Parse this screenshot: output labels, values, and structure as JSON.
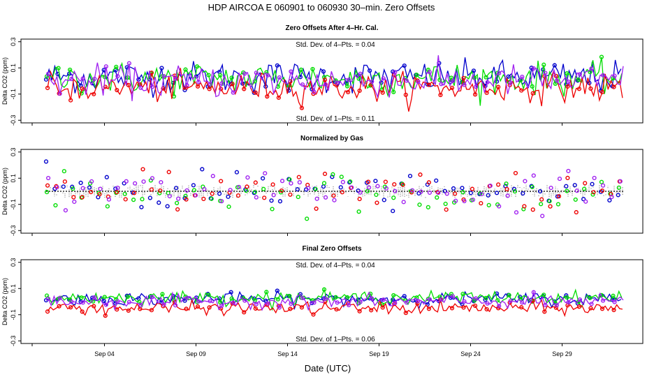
{
  "figure": {
    "title": "HDP    AIRCOA E    060901 to 060930    30–min. Zero Offsets",
    "xlabel": "Date (UTC)",
    "x_ticks": [
      "Sep 04",
      "Sep 09",
      "Sep 14",
      "Sep 19",
      "Sep 24",
      "Sep 29"
    ]
  },
  "chart_data": [
    {
      "type": "scatter",
      "title": "Zero Offsets After 4–Hr. Cal.",
      "ylabel": "Delta CO2 (ppm)",
      "ylim": [
        -0.32,
        0.32
      ],
      "y_ticks": [
        "0.3",
        "0.1",
        "-0.1",
        "-0.3"
      ],
      "annotations": [
        "Std. Dev. of 4–Pts. = 0.04",
        "Std. Dev. of 1–Pts. = 0.11"
      ],
      "series": [
        {
          "color": "#0000cc",
          "base": 0.03,
          "spread": 0.1
        },
        {
          "color": "#00dd00",
          "base": 0.02,
          "spread": 0.1
        },
        {
          "color": "#ee0000",
          "base": -0.05,
          "spread": 0.09
        },
        {
          "color": "#a020f0",
          "base": 0.0,
          "spread": 0.1
        }
      ]
    },
    {
      "type": "scatter",
      "title": "Normalized by Gas",
      "ylabel": "Delta CO2 (ppm)",
      "ylim": [
        -0.32,
        0.32
      ],
      "y_ticks": [
        "0.3",
        "0.1",
        "-0.1",
        "-0.3"
      ],
      "annotations": [],
      "series": [
        {
          "color": "#0000cc",
          "base": 0.0,
          "spread": 0.12
        },
        {
          "color": "#00dd00",
          "base": 0.0,
          "spread": 0.12
        },
        {
          "color": "#ee0000",
          "base": 0.0,
          "spread": 0.12
        },
        {
          "color": "#a020f0",
          "base": 0.0,
          "spread": 0.12
        }
      ]
    },
    {
      "type": "scatter",
      "title": "Final Zero Offsets",
      "ylabel": "Delta CO2 (ppm)",
      "ylim": [
        -0.32,
        0.32
      ],
      "y_ticks": [
        "0.3",
        "0.1",
        "-0.1",
        "-0.3"
      ],
      "annotations": [
        "Std. Dev. of 4–Pts. = 0.04",
        "Std. Dev. of 1–Pts. = 0.06"
      ],
      "series": [
        {
          "color": "#0000cc",
          "base": 0.02,
          "spread": 0.04
        },
        {
          "color": "#00dd00",
          "base": 0.03,
          "spread": 0.04
        },
        {
          "color": "#ee0000",
          "base": -0.05,
          "spread": 0.04
        },
        {
          "color": "#a020f0",
          "base": 0.0,
          "spread": 0.04
        }
      ]
    }
  ]
}
